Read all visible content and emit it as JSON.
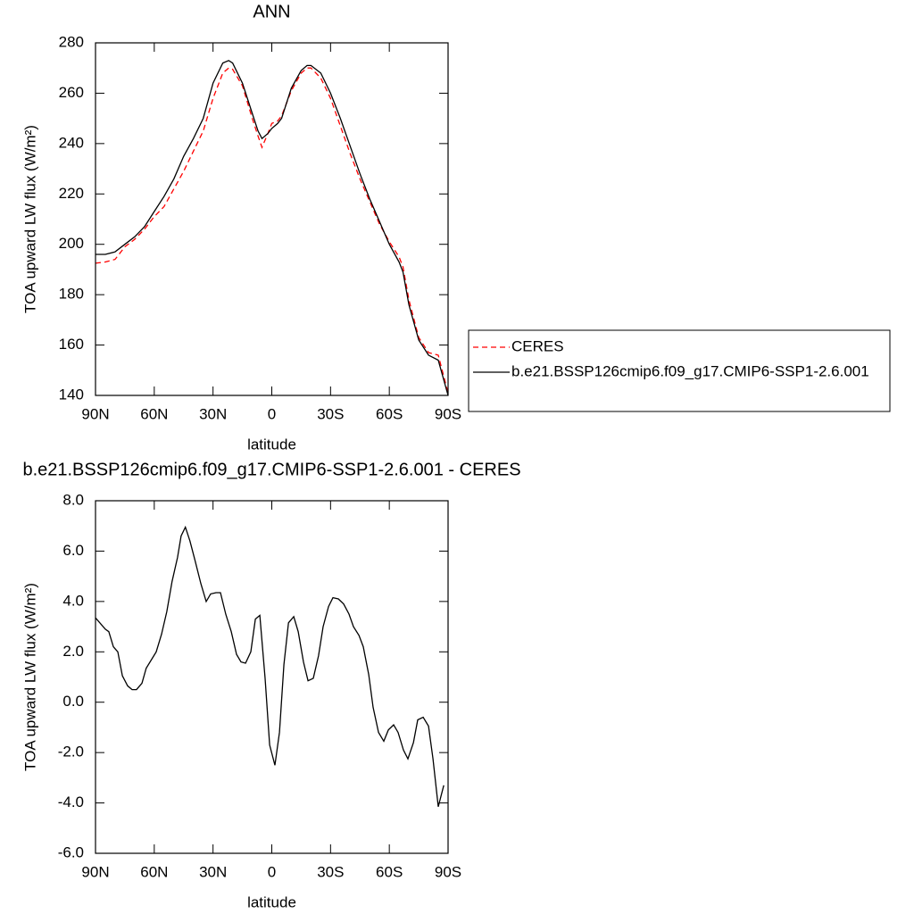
{
  "chart_data": [
    {
      "type": "line",
      "title": "ANN",
      "xlabel": "latitude",
      "ylabel": "TOA upward LW flux (W/m²)",
      "x": [
        90,
        85,
        80,
        75,
        70,
        65,
        60,
        55,
        50,
        45,
        40,
        35,
        30,
        25,
        22,
        20,
        15,
        10,
        7,
        5,
        2,
        0,
        -3,
        -5,
        -10,
        -15,
        -18,
        -20,
        -25,
        -30,
        -35,
        -40,
        -45,
        -50,
        -55,
        -60,
        -65,
        -67,
        -70,
        -75,
        -80,
        -85,
        -90
      ],
      "series": [
        {
          "name": "CERES",
          "color": "#ff0000",
          "linestyle": "dashed",
          "values": [
            192.5,
            193,
            194,
            199,
            202,
            206,
            211,
            215,
            222,
            229,
            237,
            245,
            258,
            268,
            270,
            269.5,
            263,
            250,
            243,
            238.5,
            244,
            248,
            249,
            251,
            261,
            268,
            270,
            270,
            266,
            258,
            247,
            236,
            226,
            217,
            208,
            201,
            195,
            191,
            178,
            163,
            157,
            156,
            141
          ]
        },
        {
          "name": "b.e21.BSSP126cmip6.f09_g17.CMIP6-SSP1-2.6.001",
          "color": "#000000",
          "linestyle": "solid",
          "values": [
            196,
            196,
            197,
            200,
            203,
            207,
            213,
            219,
            226,
            235,
            242,
            250,
            264,
            272,
            273,
            272,
            264,
            252,
            245,
            242,
            244,
            246,
            248,
            250,
            262,
            269,
            271,
            271,
            268,
            260,
            250,
            239,
            228,
            218,
            209,
            200,
            193,
            189,
            176,
            162,
            156,
            154,
            140
          ]
        }
      ],
      "xlim": [
        90,
        -90
      ],
      "xticks": [
        {
          "value": 90,
          "label": "90N"
        },
        {
          "value": 60,
          "label": "60N"
        },
        {
          "value": 30,
          "label": "30N"
        },
        0,
        {
          "value": -30,
          "label": "30S"
        },
        {
          "value": -60,
          "label": "60S"
        },
        {
          "value": -90,
          "label": "90S"
        }
      ],
      "ylim": [
        140,
        280
      ],
      "yticks": [
        140,
        160,
        180,
        200,
        220,
        240,
        260,
        280
      ],
      "legend": "right"
    },
    {
      "type": "line",
      "title": "b.e21.BSSP126cmip6.f09_g17.CMIP6-SSP1-2.6.001 - CERES",
      "xlabel": "latitude",
      "ylabel": "TOA upward LW flux (W/m²)",
      "x": [
        90,
        85,
        83.2,
        80.9,
        78.6,
        76.3,
        73.6,
        71.3,
        69.1,
        66.3,
        64.1,
        59,
        56.3,
        53.6,
        50.9,
        48.1,
        46.3,
        44.1,
        41.8,
        39.1,
        36.2,
        33.5,
        31.2,
        28.5,
        26.2,
        23.5,
        20.7,
        18,
        15.7,
        13.4,
        10.7,
        8.4,
        6.1,
        3.4,
        1.1,
        -1.6,
        -3.9,
        -6.2,
        -8.5,
        -11.2,
        -13.5,
        -16.2,
        -18.5,
        -21.2,
        -23.9,
        -26.2,
        -29,
        -31.2,
        -34,
        -36.7,
        -39.4,
        -41.7,
        -44.5,
        -46.7,
        -49.5,
        -51.7,
        -54.5,
        -57.2,
        -59.5,
        -62.2,
        -64.5,
        -67.2,
        -69.5,
        -72.3,
        -74.5,
        -77.3,
        -80,
        -82.3,
        -85,
        -87.8
      ],
      "values": [
        3.35,
        2.9,
        2.8,
        2.2,
        2.0,
        1.05,
        0.65,
        0.5,
        0.5,
        0.75,
        1.35,
        2.0,
        2.7,
        3.6,
        4.8,
        5.75,
        6.6,
        6.95,
        6.4,
        5.6,
        4.7,
        4.0,
        4.3,
        4.35,
        4.35,
        3.5,
        2.8,
        1.9,
        1.6,
        1.55,
        2.0,
        3.3,
        3.45,
        0.95,
        -1.7,
        -2.5,
        -1.2,
        1.5,
        3.15,
        3.4,
        2.8,
        1.6,
        0.85,
        0.95,
        1.85,
        3.0,
        3.8,
        4.15,
        4.1,
        3.9,
        3.5,
        3.0,
        2.65,
        2.2,
        1.1,
        -0.2,
        -1.2,
        -1.55,
        -1.1,
        -0.9,
        -1.2,
        -1.9,
        -2.25,
        -1.6,
        -0.7,
        -0.6,
        -0.95,
        -2.25,
        -4.15,
        -3.3
      ],
      "color": "#000000",
      "xlim": [
        90,
        -90
      ],
      "xticks": [
        {
          "value": 90,
          "label": "90N"
        },
        {
          "value": 60,
          "label": "60N"
        },
        {
          "value": 30,
          "label": "30N"
        },
        0,
        {
          "value": -30,
          "label": "30S"
        },
        {
          "value": -60,
          "label": "60S"
        },
        {
          "value": -90,
          "label": "90S"
        }
      ],
      "ylim": [
        -6,
        8
      ],
      "yticks": [
        {
          "value": -6,
          "label": "-6.0"
        },
        {
          "value": -4,
          "label": "-4.0"
        },
        {
          "value": -2,
          "label": "-2.0"
        },
        {
          "value": 0,
          "label": "0.0"
        },
        {
          "value": 2,
          "label": "2.0"
        },
        {
          "value": 4,
          "label": "4.0"
        },
        {
          "value": 6,
          "label": "6.0"
        },
        {
          "value": 8,
          "label": "8.0"
        }
      ]
    }
  ]
}
